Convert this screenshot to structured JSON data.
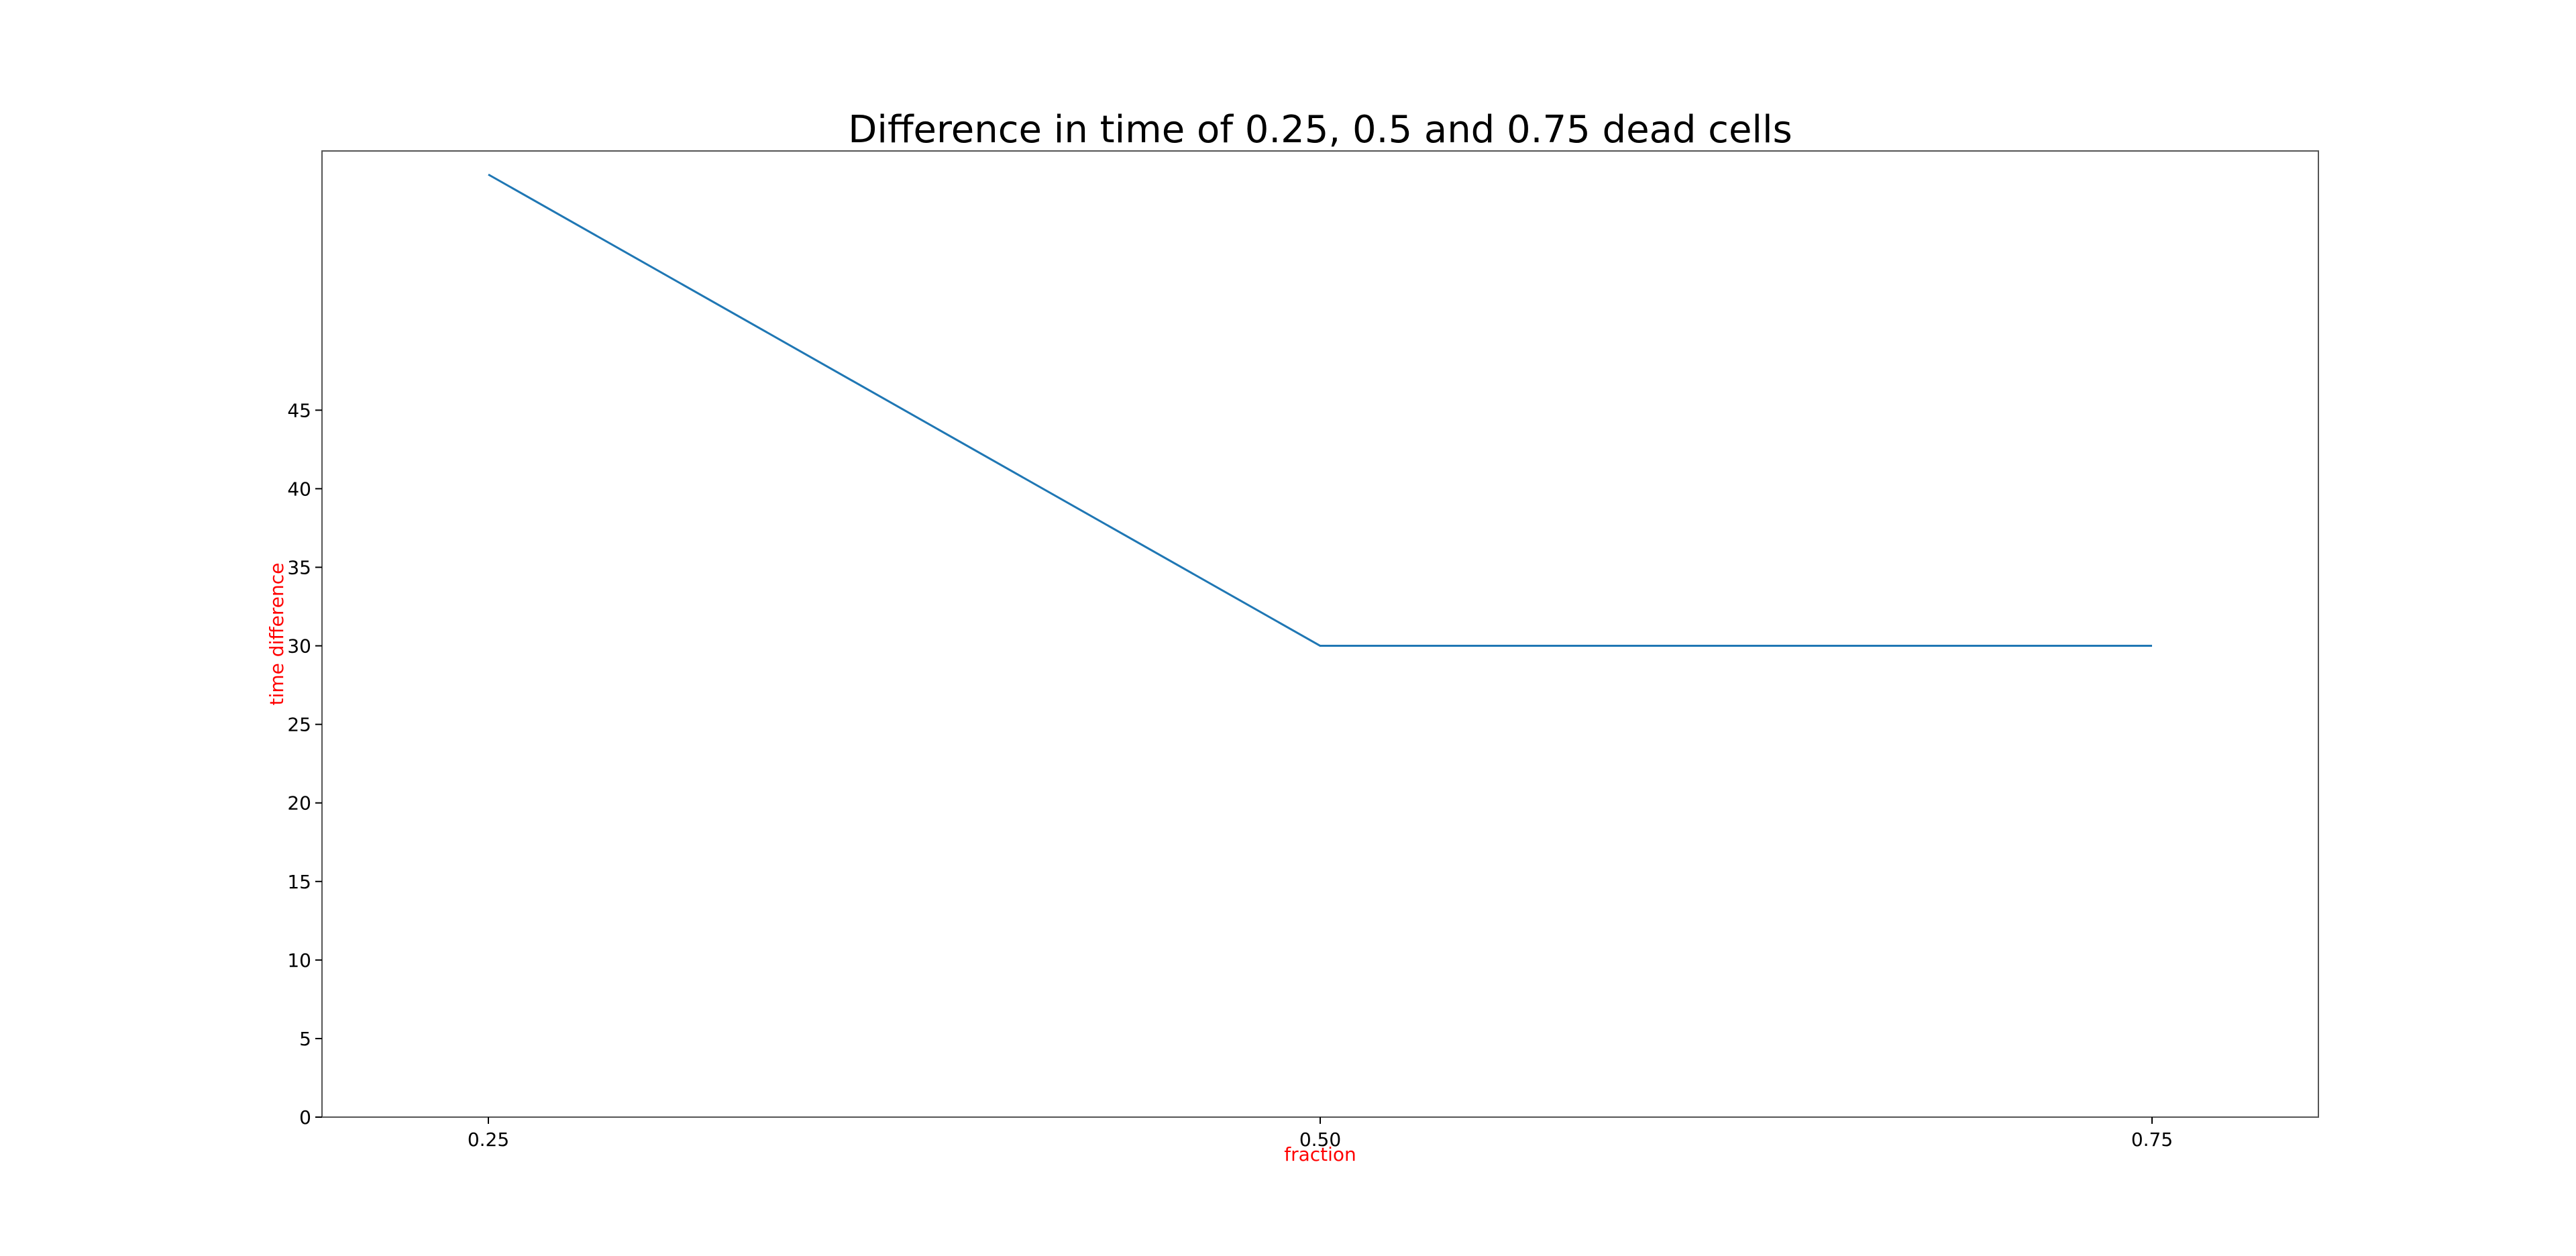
{
  "chart_data": {
    "type": "line",
    "title": "Difference in time of 0.25, 0.5 and 0.75 dead cells",
    "xlabel": "fraction",
    "ylabel": "time difference",
    "x": [
      0.25,
      0.5,
      0.75
    ],
    "x_ticks": [
      "0.25",
      "0.50",
      "0.75"
    ],
    "y_ticks": [
      "0",
      "5",
      "10",
      "15",
      "20",
      "25",
      "30",
      "35",
      "40",
      "45"
    ],
    "ylim": [
      0,
      61.5
    ],
    "series": [
      {
        "values": [
          60,
          30,
          30
        ],
        "color": "#1f77b4"
      }
    ],
    "label_color": "#ff0000",
    "grid": false,
    "legend": "none"
  }
}
